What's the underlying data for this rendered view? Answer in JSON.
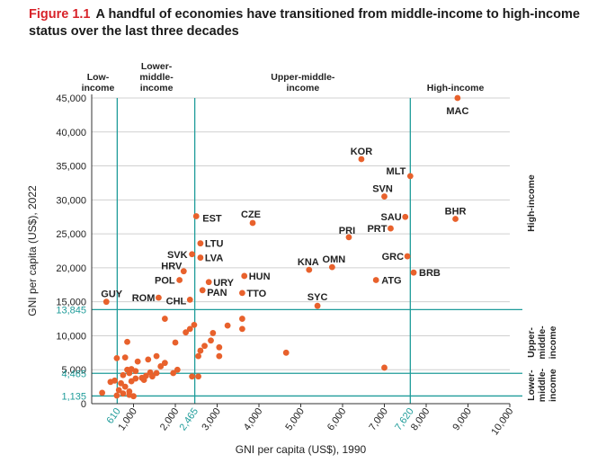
{
  "figure": {
    "number": "Figure 1.1",
    "title": "A handful of economies have transitioned from middle-income to high-income status over the last three decades"
  },
  "colors": {
    "point": "#e8612c",
    "threshold": "#1f9c9a",
    "grid": "#d0d0d0",
    "axis": "#333333"
  },
  "chart_data": {
    "type": "scatter",
    "xlabel": "GNI per capita (US$), 1990",
    "ylabel": "GNI per capita (US$), 2022",
    "xlim": [
      0,
      10000
    ],
    "ylim": [
      0,
      45000
    ],
    "x_ticks": [
      "1,000",
      "2,000",
      "3,000",
      "4,000",
      "5,000",
      "6,000",
      "7,000",
      "8,000",
      "9,000",
      "10,000"
    ],
    "x_tick_values": [
      1000,
      2000,
      3000,
      4000,
      5000,
      6000,
      7000,
      8000,
      9000,
      10000
    ],
    "y_ticks": [
      "5,000",
      "10,000",
      "15,000",
      "20,000",
      "25,000",
      "30,000",
      "35,000",
      "40,000",
      "45,000"
    ],
    "y_tick_values": [
      5000,
      10000,
      15000,
      20000,
      25000,
      30000,
      35000,
      40000,
      45000
    ],
    "y_zero_label": "0",
    "x_thresholds": [
      {
        "value": 610,
        "label": "610"
      },
      {
        "value": 2465,
        "label": "2,465"
      },
      {
        "value": 7620,
        "label": "7,620"
      }
    ],
    "y_thresholds": [
      {
        "value": 1135,
        "label": "1,135"
      },
      {
        "value": 4465,
        "label": "4,465"
      },
      {
        "value": 13845,
        "label": "13,845"
      }
    ],
    "top_groups": [
      {
        "lines": [
          "Low-",
          "income"
        ],
        "x": 150
      },
      {
        "lines": [
          "Lower-",
          "middle-",
          "income"
        ],
        "x": 1550
      },
      {
        "lines": [
          "Upper-middle-",
          "income"
        ],
        "x": 5050
      },
      {
        "lines": [
          "High-income"
        ],
        "x": 8700
      }
    ],
    "right_groups": [
      {
        "lines": [
          "High-income"
        ],
        "y": 29500
      },
      {
        "lines": [
          "Upper-",
          "middle-",
          "income"
        ],
        "y": 9000
      },
      {
        "lines": [
          "Lower-",
          "middle-",
          "income"
        ],
        "y": 2700
      }
    ],
    "labeled_points": [
      {
        "label": "MAC",
        "x": 8750,
        "y": 45000
      },
      {
        "label": "KOR",
        "x": 6450,
        "y": 36000
      },
      {
        "label": "MLT",
        "x": 7620,
        "y": 33500
      },
      {
        "label": "SVN",
        "x": 7000,
        "y": 30500
      },
      {
        "label": "SAU",
        "x": 7500,
        "y": 27500
      },
      {
        "label": "BHR",
        "x": 8700,
        "y": 27200
      },
      {
        "label": "PRT",
        "x": 7150,
        "y": 25800
      },
      {
        "label": "PRI",
        "x": 6150,
        "y": 24500
      },
      {
        "label": "GRC",
        "x": 7550,
        "y": 21700
      },
      {
        "label": "OMN",
        "x": 5750,
        "y": 20100
      },
      {
        "label": "KNA",
        "x": 5200,
        "y": 19700
      },
      {
        "label": "ATG",
        "x": 6800,
        "y": 18200
      },
      {
        "label": "BRB",
        "x": 7700,
        "y": 19300
      },
      {
        "label": "SYC",
        "x": 5400,
        "y": 14400
      },
      {
        "label": "EST",
        "x": 2500,
        "y": 27600
      },
      {
        "label": "CZE",
        "x": 3850,
        "y": 26600
      },
      {
        "label": "LTU",
        "x": 2600,
        "y": 23600
      },
      {
        "label": "LVA",
        "x": 2600,
        "y": 21500
      },
      {
        "label": "SVK",
        "x": 2400,
        "y": 22000
      },
      {
        "label": "HRV",
        "x": 2200,
        "y": 19500
      },
      {
        "label": "POL",
        "x": 2100,
        "y": 18200
      },
      {
        "label": "URY",
        "x": 2800,
        "y": 17900
      },
      {
        "label": "HUN",
        "x": 3650,
        "y": 18800
      },
      {
        "label": "PAN",
        "x": 2650,
        "y": 16700
      },
      {
        "label": "TTO",
        "x": 3600,
        "y": 16300
      },
      {
        "label": "CHL",
        "x": 2350,
        "y": 15300
      },
      {
        "label": "ROM",
        "x": 1600,
        "y": 15600
      },
      {
        "label": "GUY",
        "x": 350,
        "y": 15000
      }
    ],
    "unlabeled_points": [
      [
        1750,
        12500
      ],
      [
        3600,
        12500
      ],
      [
        2450,
        11600
      ],
      [
        2350,
        11000
      ],
      [
        3600,
        11000
      ],
      [
        2250,
        10500
      ],
      [
        3250,
        11500
      ],
      [
        2900,
        10400
      ],
      [
        2850,
        9300
      ],
      [
        2700,
        8500
      ],
      [
        3050,
        8300
      ],
      [
        2600,
        7800
      ],
      [
        2550,
        7000
      ],
      [
        3050,
        7000
      ],
      [
        2000,
        9000
      ],
      [
        4650,
        7500
      ],
      [
        1550,
        7000
      ],
      [
        1350,
        6500
      ],
      [
        1100,
        6200
      ],
      [
        1750,
        6000
      ],
      [
        1650,
        5500
      ],
      [
        2050,
        5000
      ],
      [
        1950,
        4500
      ],
      [
        2400,
        4000
      ],
      [
        2550,
        4000
      ],
      [
        850,
        9100
      ],
      [
        800,
        6800
      ],
      [
        600,
        6700
      ],
      [
        850,
        5000
      ],
      [
        950,
        5100
      ],
      [
        1050,
        4800
      ],
      [
        900,
        4500
      ],
      [
        750,
        4200
      ],
      [
        1550,
        4500
      ],
      [
        1400,
        4600
      ],
      [
        1300,
        4100
      ],
      [
        1450,
        4000
      ],
      [
        1200,
        3800
      ],
      [
        1050,
        3700
      ],
      [
        1250,
        3500
      ],
      [
        550,
        3400
      ],
      [
        450,
        3200
      ],
      [
        700,
        3000
      ],
      [
        800,
        2500
      ],
      [
        650,
        2000
      ],
      [
        900,
        1800
      ],
      [
        750,
        1500
      ],
      [
        600,
        1200
      ],
      [
        1000,
        1100
      ],
      [
        900,
        1300
      ],
      [
        250,
        1600
      ],
      [
        950,
        3300
      ],
      [
        7000,
        5300
      ]
    ]
  }
}
